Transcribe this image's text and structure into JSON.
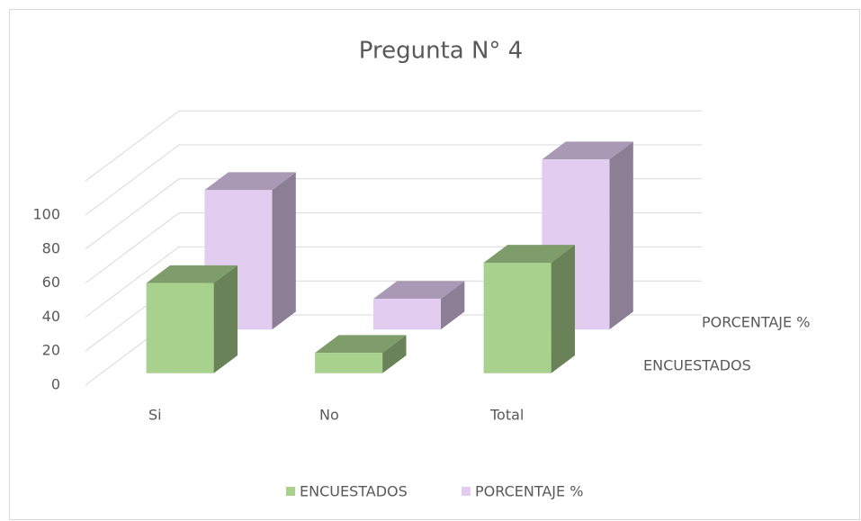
{
  "chart_data": {
    "type": "bar3d",
    "title": "Pregunta N° 4",
    "categories": [
      "Si",
      "No",
      "Total"
    ],
    "series": [
      {
        "name": "ENCUESTADOS",
        "color": "#a9d18e",
        "values": [
          53,
          12,
          65
        ]
      },
      {
        "name": "PORCENTAJE %",
        "color": "#e2ccf0",
        "values": [
          82,
          18,
          100
        ]
      }
    ],
    "ylim": [
      0,
      120
    ],
    "yticks": [
      0,
      20,
      40,
      60,
      80,
      100
    ],
    "grid": true,
    "legend": "bottom"
  }
}
